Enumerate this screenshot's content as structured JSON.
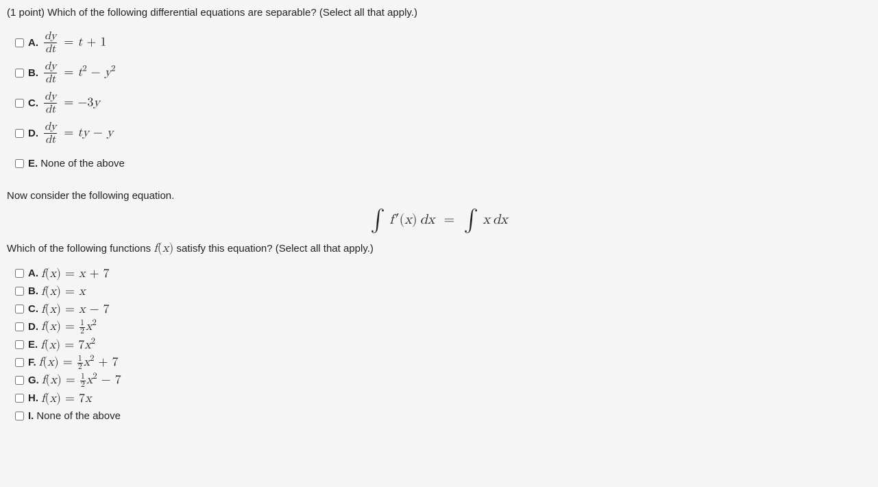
{
  "question1": {
    "prompt_prefix": "(1 point) ",
    "prompt": "Which of the following differential equations are separable? (Select all that apply.)",
    "options": [
      {
        "letter": "A.",
        "rhs": "t + 1",
        "is_frac": true
      },
      {
        "letter": "B.",
        "rhs": "t² − y²",
        "is_frac": true,
        "sup_t": true,
        "sup_y": true
      },
      {
        "letter": "C.",
        "rhs": "−3y",
        "is_frac": true
      },
      {
        "letter": "D.",
        "rhs": "ty − y",
        "is_frac": true
      },
      {
        "letter": "E.",
        "text": "None of the above",
        "is_frac": false
      }
    ]
  },
  "transition": "Now consider the following equation.",
  "equation_text": "∫ f′(x) dx = ∫ x dx",
  "question2": {
    "prompt": "Which of the following functions f(x) satisfy this equation? (Select all that apply.)",
    "options": [
      {
        "letter": "A.",
        "expr": "f(x) = x + 7"
      },
      {
        "letter": "B.",
        "expr": "f(x) = x"
      },
      {
        "letter": "C.",
        "expr": "f(x) = x − 7"
      },
      {
        "letter": "D.",
        "expr": "f(x) = ½x²",
        "half": true,
        "sq": true
      },
      {
        "letter": "E.",
        "expr": "f(x) = 7x²",
        "sq": true
      },
      {
        "letter": "F.",
        "expr": "f(x) = ½x² + 7",
        "half": true,
        "sq": true,
        "tail": " + 7"
      },
      {
        "letter": "G.",
        "expr": "f(x) = ½x² − 7",
        "half": true,
        "sq": true,
        "tail": " − 7"
      },
      {
        "letter": "H.",
        "expr": "f(x) = 7x"
      },
      {
        "letter": "I.",
        "text": "None of the above"
      }
    ]
  },
  "colors": {
    "background": "#f5f5f5",
    "text": "#222222"
  },
  "font_sizes": {
    "body": 15,
    "math": 18,
    "equation": 20
  }
}
